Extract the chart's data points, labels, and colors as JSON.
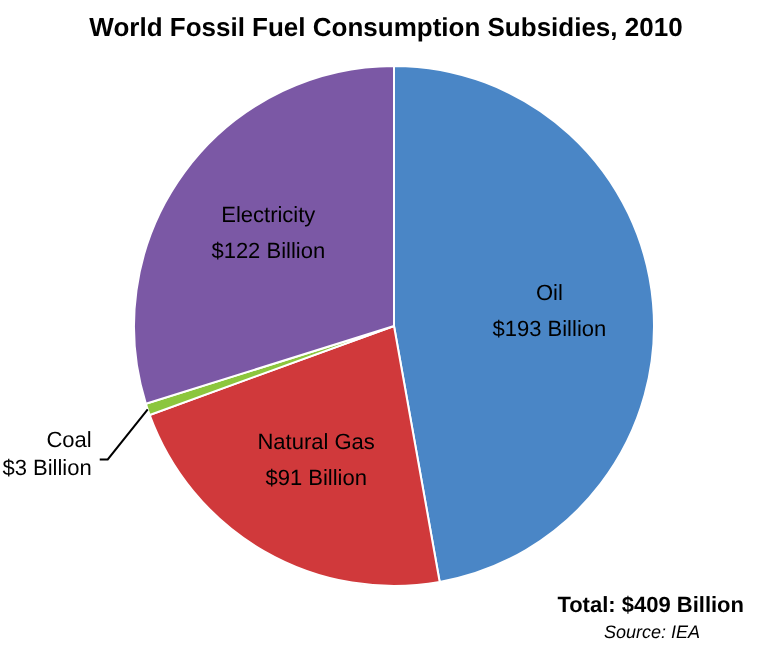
{
  "chart_data": {
    "type": "pie",
    "title": "World Fossil Fuel Consumption Subsidies, 2010",
    "categories": [
      "Oil",
      "Natural Gas",
      "Coal",
      "Electricity"
    ],
    "values": [
      193,
      91,
      3,
      122
    ],
    "colors": [
      "#4a86c6",
      "#d0393b",
      "#8cc63e",
      "#7b58a5"
    ],
    "value_labels": [
      "$193 Billion",
      "$91 Billion",
      "$3 Billion",
      "$122 Billion"
    ],
    "annotations": [
      "Total: $409 Billion",
      "Source: IEA"
    ]
  }
}
